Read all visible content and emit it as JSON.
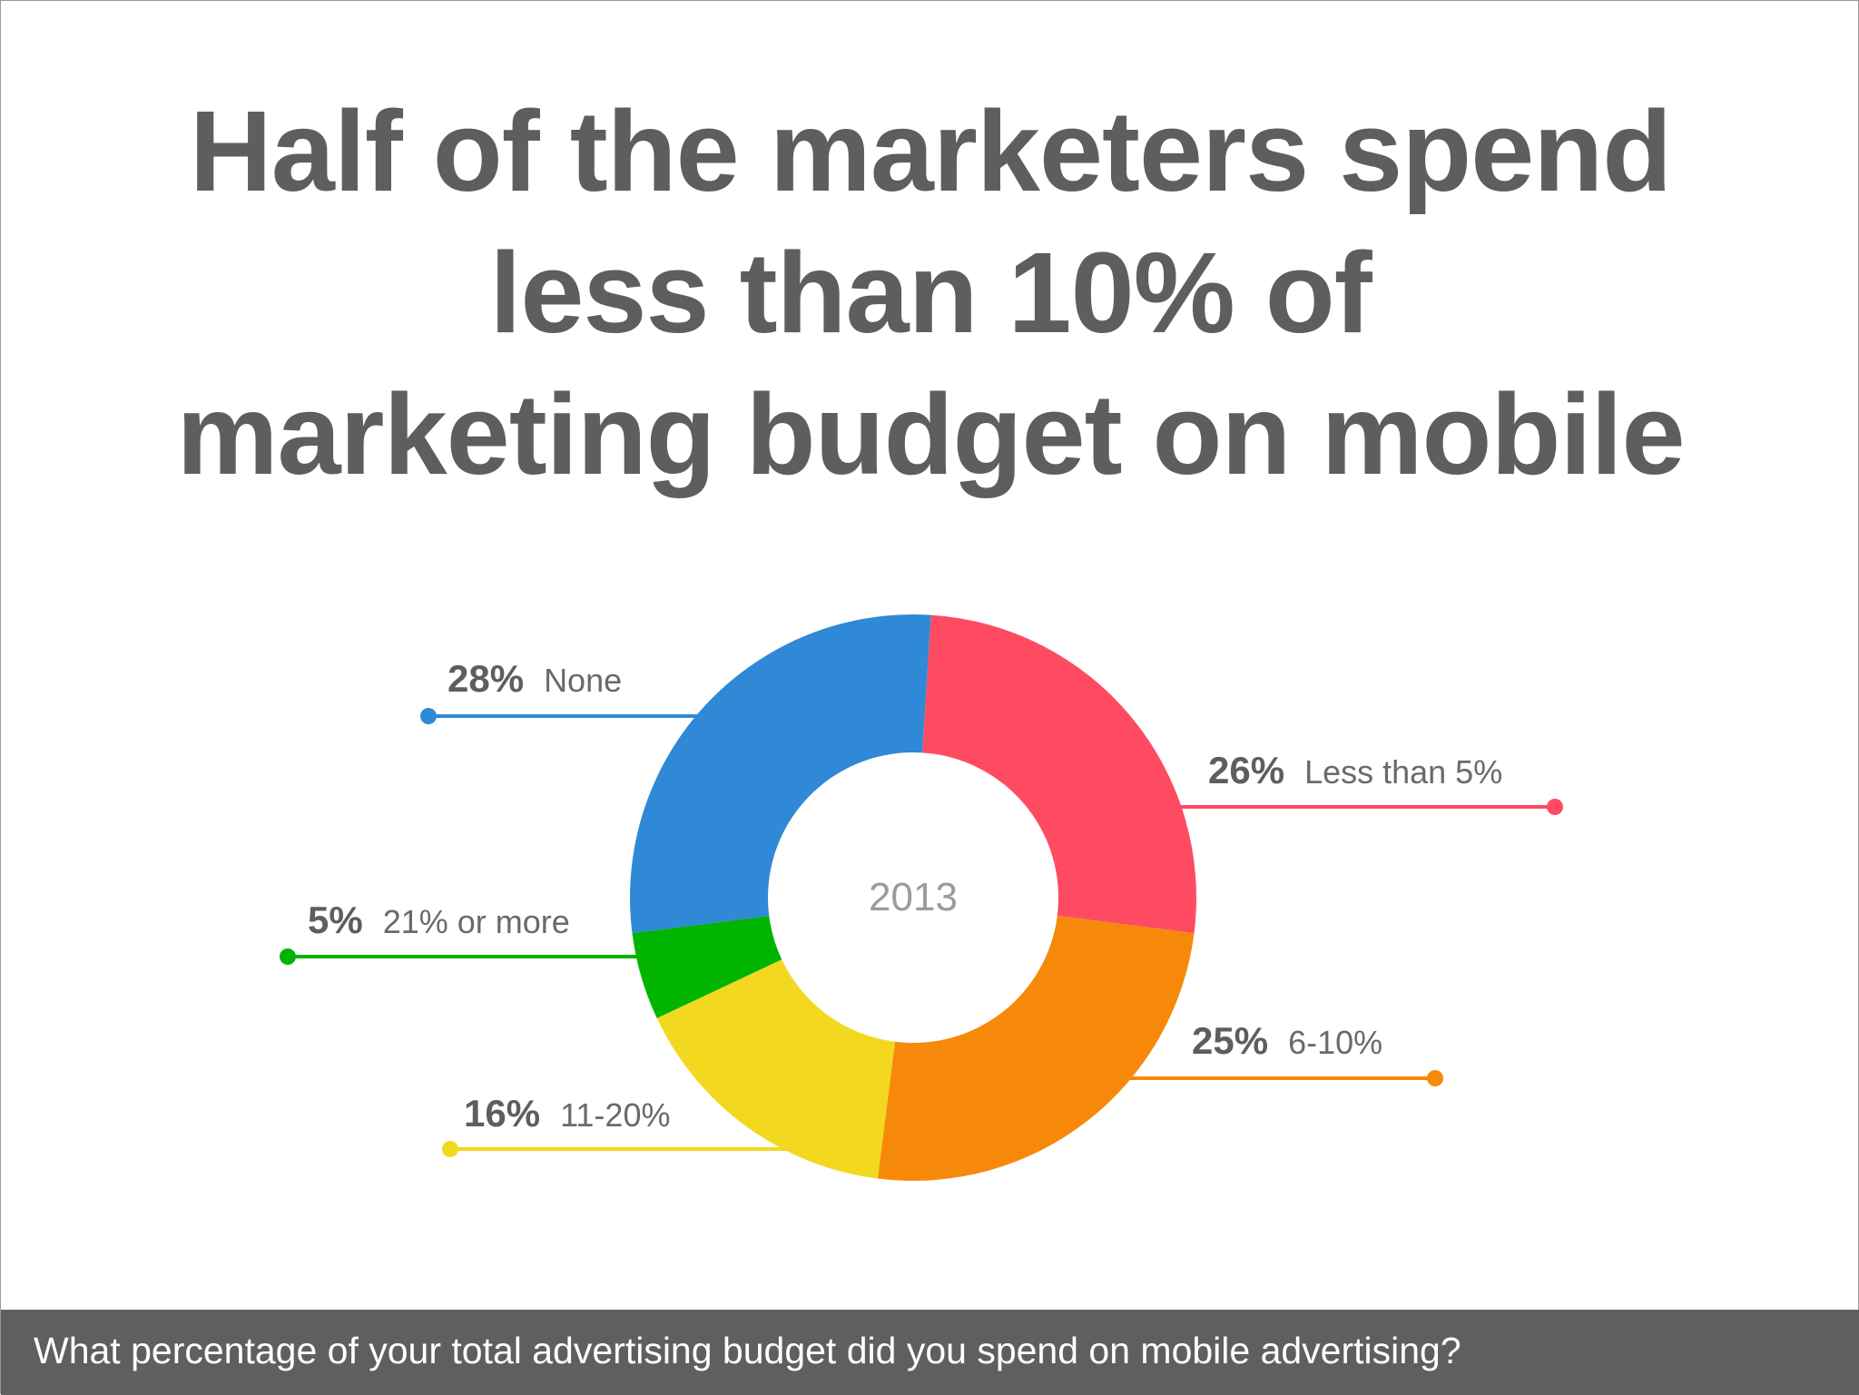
{
  "title_lines": [
    "Half of the marketers spend",
    "less than 10% of",
    "marketing budget on mobile"
  ],
  "footer": {
    "question": "What percentage of your total advertising budget did you spend on mobile advertising?"
  },
  "chart_data": {
    "type": "pie",
    "center_label": "2013",
    "slices": [
      {
        "percent_label": "26%",
        "category": "Less than 5%",
        "value": 26,
        "color": "#ff4b62"
      },
      {
        "percent_label": "25%",
        "category": "6-10%",
        "value": 25,
        "color": "#f7890a"
      },
      {
        "percent_label": "16%",
        "category": "11-20%",
        "value": 16,
        "color": "#f3d820"
      },
      {
        "percent_label": "5%",
        "category": "21% or more",
        "value": 5,
        "color": "#00b400"
      },
      {
        "percent_label": "28%",
        "category": "None",
        "value": 28,
        "color": "#2f89d6"
      }
    ]
  }
}
